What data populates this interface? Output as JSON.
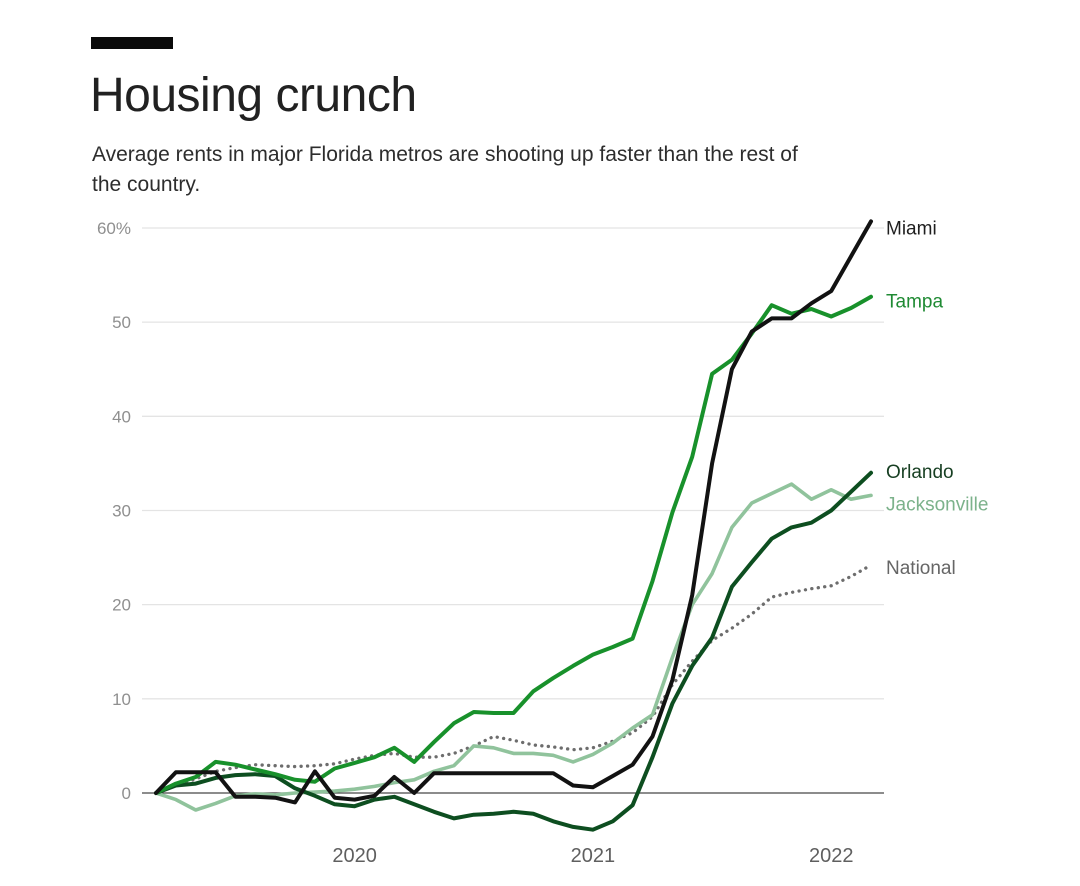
{
  "page": {
    "title": "Housing crunch",
    "subtitle_lines": [
      "Average rents in major Florida metros are shooting up faster than the rest of",
      "the country."
    ]
  },
  "chart_data": {
    "type": "line",
    "title": "Housing crunch",
    "subtitle": "Average rents in major Florida metros are shooting up faster than the rest of the country.",
    "grid": "horizontal",
    "legend_position": "right-end-labels",
    "x": [
      "Mar 2019",
      "Apr 2019",
      "May 2019",
      "Jun 2019",
      "Jul 2019",
      "Aug 2019",
      "Sep 2019",
      "Oct 2019",
      "Nov 2019",
      "Dec 2019",
      "Jan 2020",
      "Feb 2020",
      "Mar 2020",
      "Apr 2020",
      "May 2020",
      "Jun 2020",
      "Jul 2020",
      "Aug 2020",
      "Sep 2020",
      "Oct 2020",
      "Nov 2020",
      "Dec 2020",
      "Jan 2021",
      "Feb 2021",
      "Mar 2021",
      "Apr 2021",
      "May 2021",
      "Jun 2021",
      "Jul 2021",
      "Aug 2021",
      "Sep 2021",
      "Oct 2021",
      "Nov 2021",
      "Dec 2021",
      "Jan 2022",
      "Feb 2022",
      "Mar 2022"
    ],
    "x_axis": {
      "tick_labels": [
        "2020",
        "2021",
        "2022"
      ],
      "tick_x_indices": [
        10,
        22,
        34
      ]
    },
    "y_axis": {
      "tick_values": [
        60,
        50,
        40,
        30,
        20,
        10,
        0
      ],
      "tick_labels": [
        "60%",
        "50",
        "40",
        "30",
        "20",
        "10",
        "0"
      ],
      "range": [
        -5,
        63
      ]
    },
    "colors": {
      "gridline": "#e4e4e4",
      "zero_line": "#474747",
      "y_tick_label": "#8f8f8f",
      "x_tick_label": "#5f5f5f"
    },
    "series": [
      {
        "name": "Miami",
        "color": "#121212",
        "label_color": "#1f1f1f",
        "style": "solid",
        "values": [
          0,
          2.2,
          2.2,
          2.2,
          -0.4,
          -0.4,
          -0.5,
          -1.0,
          2.3,
          -0.5,
          -0.7,
          -0.3,
          1.7,
          0,
          2.1,
          2.1,
          2.1,
          2.1,
          2.1,
          2.1,
          2.1,
          0.8,
          0.6,
          1.8,
          3.0,
          6.0,
          12.0,
          21.0,
          35.0,
          45.0,
          49.0,
          50.4,
          50.4,
          52.0,
          53.3,
          57.0,
          60.7
        ]
      },
      {
        "name": "Tampa",
        "color": "#18912b",
        "label_color": "#1f8a33",
        "style": "solid",
        "values": [
          0,
          1.0,
          1.7,
          3.3,
          3.0,
          2.5,
          2.0,
          1.4,
          1.2,
          2.6,
          3.2,
          3.8,
          4.8,
          3.3,
          5.4,
          7.4,
          8.6,
          8.5,
          8.5,
          10.8,
          12.2,
          13.5,
          14.7,
          15.5,
          16.4,
          22.5,
          29.8,
          35.7,
          44.5,
          46.0,
          48.8,
          51.8,
          50.9,
          51.4,
          50.6,
          51.5,
          52.7
        ]
      },
      {
        "name": "Orlando",
        "color": "#0d4e20",
        "label_color": "#173f22",
        "style": "solid",
        "values": [
          0,
          0.8,
          1.0,
          1.6,
          1.9,
          2.0,
          1.8,
          0.5,
          -0.3,
          -1.2,
          -1.4,
          -0.7,
          -0.4,
          -1.2,
          -2.0,
          -2.7,
          -2.3,
          -2.2,
          -2.0,
          -2.2,
          -3.0,
          -3.6,
          -3.9,
          -3.0,
          -1.3,
          3.8,
          9.5,
          13.5,
          16.5,
          21.9,
          24.5,
          27.0,
          28.2,
          28.7,
          30.0,
          32.0,
          34.0
        ]
      },
      {
        "name": "Jacksonville",
        "color": "#90c39c",
        "label_color": "#7cb28b",
        "style": "solid",
        "values": [
          0,
          -0.7,
          -1.8,
          -1.1,
          -0.3,
          -0.1,
          -0.2,
          0,
          0.1,
          0.2,
          0.4,
          0.7,
          1.1,
          1.4,
          2.3,
          2.9,
          5.0,
          4.8,
          4.2,
          4.2,
          4.0,
          3.3,
          4.1,
          5.3,
          6.9,
          8.3,
          14.4,
          20.0,
          23.3,
          28.2,
          30.8,
          31.8,
          32.8,
          31.2,
          32.2,
          31.2,
          31.6
        ]
      },
      {
        "name": "National",
        "color": "#6d6d6d",
        "label_color": "#666666",
        "style": "dotted",
        "values": [
          0,
          0.8,
          1.5,
          2.3,
          2.7,
          3.0,
          2.9,
          2.8,
          2.9,
          3.1,
          3.6,
          4.0,
          4.2,
          3.8,
          3.8,
          4.2,
          5.0,
          6.0,
          5.6,
          5.1,
          4.9,
          4.6,
          4.8,
          5.5,
          6.4,
          8.1,
          11.5,
          14.0,
          16.2,
          17.5,
          19.0,
          20.8,
          21.3,
          21.7,
          22.0,
          23.0,
          24.2
        ]
      }
    ]
  }
}
